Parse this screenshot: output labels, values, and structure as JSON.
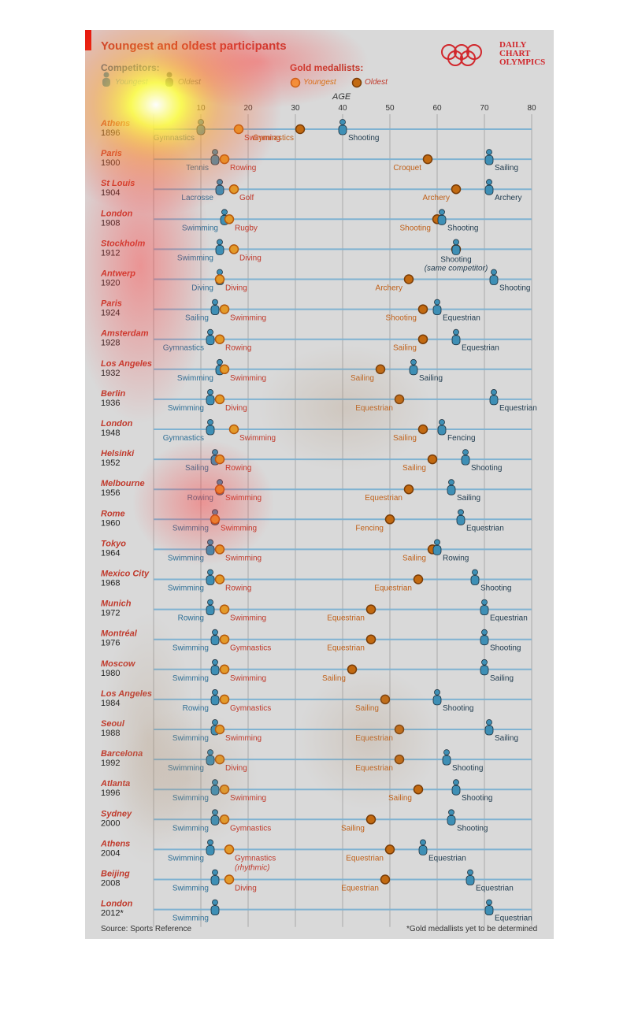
{
  "title": "Youngest and oldest participants",
  "brand": [
    "DAILY",
    "CHART",
    "OLYMPICS"
  ],
  "legend": {
    "competitors_label": "Competitors:",
    "competitors_youngest": "Youngest",
    "competitors_oldest": "Oldest",
    "gold_label": "Gold medallists:",
    "gold_youngest": "Youngest",
    "gold_oldest": "Oldest"
  },
  "source": "Source: Sports Reference",
  "footnote": "*Gold medallists yet to be determined",
  "colors": {
    "competitor": "#3e8fb5",
    "competitor_oldest": "#2f4f63",
    "gold_youngest": "#e39a2a",
    "gold_oldest": "#c26a11",
    "label_red": "#c0392b",
    "label_orange": "#c0611a",
    "label_blue": "#2e6f96",
    "label_dark": "#1f3a4d",
    "grid": "#a9a9a9",
    "rowline": "#7fb2d1"
  },
  "chart_data": {
    "type": "scatter",
    "xlabel": "AGE",
    "xticks": [
      10,
      20,
      30,
      40,
      50,
      60,
      70,
      80
    ],
    "xlim": [
      0,
      80
    ],
    "series_names": [
      "Competitors: Youngest",
      "Competitors: Oldest",
      "Gold medallists: Youngest",
      "Gold medallists: Oldest"
    ],
    "rows": [
      {
        "city": "Athens",
        "year": "1896",
        "cy": {
          "age": 10,
          "sport": "Gymnastics"
        },
        "co": {
          "age": 40,
          "sport": "Shooting"
        },
        "gy": {
          "age": 18,
          "sport": "Swimming"
        },
        "go": {
          "age": 31,
          "sport": "Gymnastics"
        }
      },
      {
        "city": "Paris",
        "year": "1900",
        "cy": {
          "age": 13,
          "sport": "Tennis"
        },
        "co": {
          "age": 71,
          "sport": "Sailing"
        },
        "gy": {
          "age": 15,
          "sport": "Rowing"
        },
        "go": {
          "age": 58,
          "sport": "Croquet"
        }
      },
      {
        "city": "St Louis",
        "year": "1904",
        "cy": {
          "age": 14,
          "sport": "Lacrosse"
        },
        "co": {
          "age": 71,
          "sport": "Archery"
        },
        "gy": {
          "age": 17,
          "sport": "Golf"
        },
        "go": {
          "age": 64,
          "sport": "Archery"
        }
      },
      {
        "city": "London",
        "year": "1908",
        "cy": {
          "age": 15,
          "sport": "Swimming"
        },
        "co": {
          "age": 61,
          "sport": "Shooting"
        },
        "gy": {
          "age": 16,
          "sport": "Rugby"
        },
        "go": {
          "age": 60,
          "sport": "Shooting"
        }
      },
      {
        "city": "Stockholm",
        "year": "1912",
        "cy": {
          "age": 14,
          "sport": "Swimming"
        },
        "co": {
          "age": 64,
          "sport": "Shooting",
          "note": "(same competitor)"
        },
        "gy": {
          "age": 17,
          "sport": "Diving"
        },
        "go": {
          "age": 64,
          "sport": ""
        }
      },
      {
        "city": "Antwerp",
        "year": "1920",
        "cy": {
          "age": 14,
          "sport": "Diving"
        },
        "co": {
          "age": 72,
          "sport": "Shooting"
        },
        "gy": {
          "age": 14,
          "sport": "Diving"
        },
        "go": {
          "age": 54,
          "sport": "Archery"
        }
      },
      {
        "city": "Paris",
        "year": "1924",
        "cy": {
          "age": 13,
          "sport": "Sailing"
        },
        "co": {
          "age": 60,
          "sport": "Equestrian"
        },
        "gy": {
          "age": 15,
          "sport": "Swimming"
        },
        "go": {
          "age": 57,
          "sport": "Shooting"
        }
      },
      {
        "city": "Amsterdam",
        "year": "1928",
        "cy": {
          "age": 12,
          "sport": "Gymnastics"
        },
        "co": {
          "age": 64,
          "sport": "Equestrian"
        },
        "gy": {
          "age": 14,
          "sport": "Rowing"
        },
        "go": {
          "age": 57,
          "sport": "Sailing"
        }
      },
      {
        "city": "Los Angeles",
        "year": "1932",
        "cy": {
          "age": 14,
          "sport": "Swimming"
        },
        "co": {
          "age": 55,
          "sport": "Sailing"
        },
        "gy": {
          "age": 15,
          "sport": "Swimming"
        },
        "go": {
          "age": 48,
          "sport": "Sailing"
        }
      },
      {
        "city": "Berlin",
        "year": "1936",
        "cy": {
          "age": 12,
          "sport": "Swimming"
        },
        "co": {
          "age": 72,
          "sport": "Equestrian"
        },
        "gy": {
          "age": 14,
          "sport": "Diving"
        },
        "go": {
          "age": 52,
          "sport": "Equestrian"
        }
      },
      {
        "city": "London",
        "year": "1948",
        "cy": {
          "age": 12,
          "sport": "Gymnastics"
        },
        "co": {
          "age": 61,
          "sport": "Fencing"
        },
        "gy": {
          "age": 17,
          "sport": "Swimming"
        },
        "go": {
          "age": 57,
          "sport": "Sailing"
        }
      },
      {
        "city": "Helsinki",
        "year": "1952",
        "cy": {
          "age": 13,
          "sport": "Sailing"
        },
        "co": {
          "age": 66,
          "sport": "Shooting"
        },
        "gy": {
          "age": 14,
          "sport": "Rowing"
        },
        "go": {
          "age": 59,
          "sport": "Sailing"
        }
      },
      {
        "city": "Melbourne",
        "year": "1956",
        "cy": {
          "age": 14,
          "sport": "Rowing"
        },
        "co": {
          "age": 63,
          "sport": "Sailing"
        },
        "gy": {
          "age": 14,
          "sport": "Swimming"
        },
        "go": {
          "age": 54,
          "sport": "Equestrian"
        }
      },
      {
        "city": "Rome",
        "year": "1960",
        "cy": {
          "age": 13,
          "sport": "Swimming"
        },
        "co": {
          "age": 65,
          "sport": "Equestrian"
        },
        "gy": {
          "age": 13,
          "sport": "Swimming"
        },
        "go": {
          "age": 50,
          "sport": "Fencing"
        }
      },
      {
        "city": "Tokyo",
        "year": "1964",
        "cy": {
          "age": 12,
          "sport": "Swimming"
        },
        "co": {
          "age": 60,
          "sport": "Rowing"
        },
        "gy": {
          "age": 14,
          "sport": "Swimming"
        },
        "go": {
          "age": 59,
          "sport": "Sailing"
        }
      },
      {
        "city": "Mexico City",
        "year": "1968",
        "cy": {
          "age": 12,
          "sport": "Swimming"
        },
        "co": {
          "age": 68,
          "sport": "Shooting"
        },
        "gy": {
          "age": 14,
          "sport": "Rowing"
        },
        "go": {
          "age": 56,
          "sport": "Equestrian"
        }
      },
      {
        "city": "Munich",
        "year": "1972",
        "cy": {
          "age": 12,
          "sport": "Rowing"
        },
        "co": {
          "age": 70,
          "sport": "Equestrian"
        },
        "gy": {
          "age": 15,
          "sport": "Swimming"
        },
        "go": {
          "age": 46,
          "sport": "Equestrian"
        }
      },
      {
        "city": "Montréal",
        "year": "1976",
        "cy": {
          "age": 13,
          "sport": "Swimming"
        },
        "co": {
          "age": 70,
          "sport": "Shooting"
        },
        "gy": {
          "age": 15,
          "sport": "Gymnastics"
        },
        "go": {
          "age": 46,
          "sport": "Equestrian"
        }
      },
      {
        "city": "Moscow",
        "year": "1980",
        "cy": {
          "age": 13,
          "sport": "Swimming"
        },
        "co": {
          "age": 70,
          "sport": "Sailing"
        },
        "gy": {
          "age": 15,
          "sport": "Swimming"
        },
        "go": {
          "age": 42,
          "sport": "Sailing"
        }
      },
      {
        "city": "Los Angeles",
        "year": "1984",
        "cy": {
          "age": 13,
          "sport": "Rowing"
        },
        "co": {
          "age": 60,
          "sport": "Shooting"
        },
        "gy": {
          "age": 15,
          "sport": "Gymnastics"
        },
        "go": {
          "age": 49,
          "sport": "Sailing"
        }
      },
      {
        "city": "Seoul",
        "year": "1988",
        "cy": {
          "age": 13,
          "sport": "Swimming"
        },
        "co": {
          "age": 71,
          "sport": "Sailing"
        },
        "gy": {
          "age": 14,
          "sport": "Swimming"
        },
        "go": {
          "age": 52,
          "sport": "Equestrian"
        }
      },
      {
        "city": "Barcelona",
        "year": "1992",
        "cy": {
          "age": 12,
          "sport": "Swimming"
        },
        "co": {
          "age": 62,
          "sport": "Shooting"
        },
        "gy": {
          "age": 14,
          "sport": "Diving"
        },
        "go": {
          "age": 52,
          "sport": "Equestrian"
        }
      },
      {
        "city": "Atlanta",
        "year": "1996",
        "cy": {
          "age": 13,
          "sport": "Swimming"
        },
        "co": {
          "age": 64,
          "sport": "Shooting"
        },
        "gy": {
          "age": 15,
          "sport": "Swimming"
        },
        "go": {
          "age": 56,
          "sport": "Sailing"
        }
      },
      {
        "city": "Sydney",
        "year": "2000",
        "cy": {
          "age": 13,
          "sport": "Swimming"
        },
        "co": {
          "age": 63,
          "sport": "Shooting"
        },
        "gy": {
          "age": 15,
          "sport": "Gymnastics"
        },
        "go": {
          "age": 46,
          "sport": "Sailing"
        }
      },
      {
        "city": "Athens",
        "year": "2004",
        "cy": {
          "age": 12,
          "sport": "Swimming"
        },
        "co": {
          "age": 57,
          "sport": "Equestrian"
        },
        "gy": {
          "age": 16,
          "sport": "Gymnastics",
          "note": "(rhythmic)"
        },
        "go": {
          "age": 50,
          "sport": "Equestrian"
        }
      },
      {
        "city": "Beijing",
        "year": "2008",
        "cy": {
          "age": 13,
          "sport": "Swimming"
        },
        "co": {
          "age": 67,
          "sport": "Equestrian"
        },
        "gy": {
          "age": 16,
          "sport": "Diving"
        },
        "go": {
          "age": 49,
          "sport": "Equestrian"
        }
      },
      {
        "city": "London",
        "year": "2012*",
        "cy": {
          "age": 13,
          "sport": "Swimming"
        },
        "co": {
          "age": 71,
          "sport": "Equestrian"
        }
      }
    ]
  }
}
